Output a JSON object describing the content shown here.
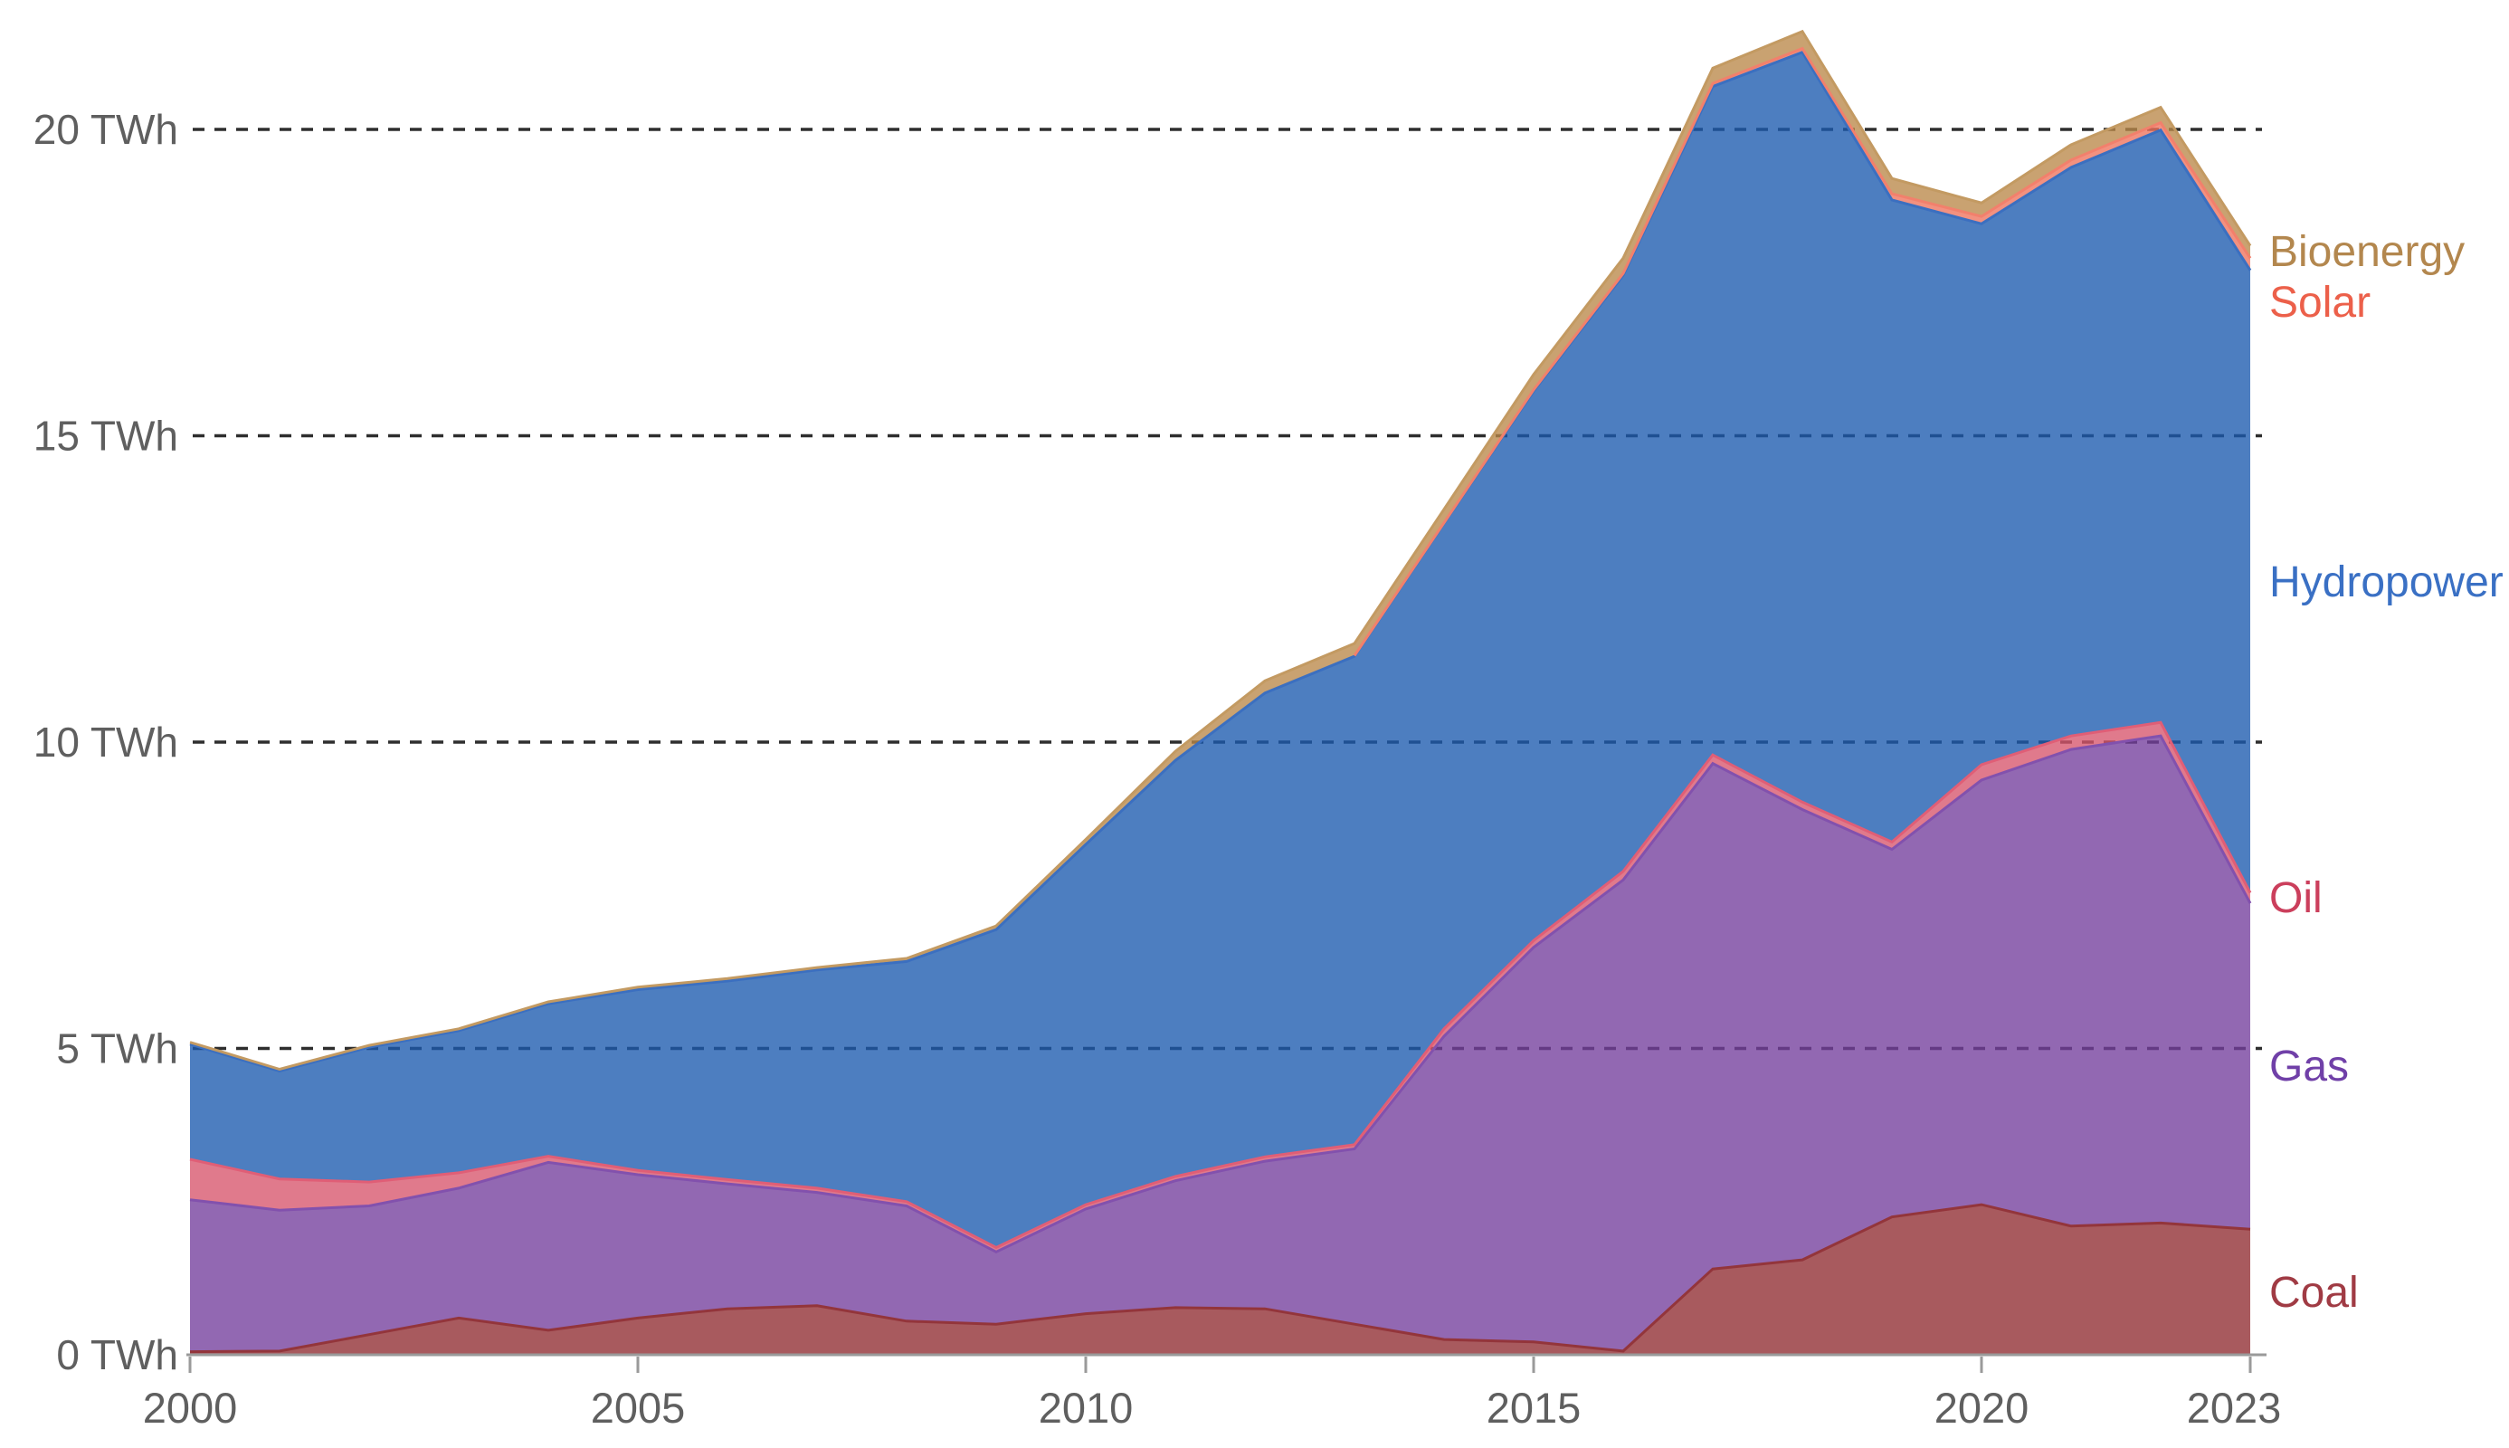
{
  "chart_data": {
    "type": "area",
    "stacked": true,
    "title": "",
    "unit": "TWh",
    "grid": "dashed-horizontal",
    "legend_position": "right-edge-labels",
    "x": [
      2000,
      2001,
      2002,
      2003,
      2004,
      2005,
      2006,
      2007,
      2008,
      2009,
      2010,
      2011,
      2012,
      2013,
      2014,
      2015,
      2016,
      2017,
      2018,
      2019,
      2020,
      2021,
      2022,
      2023
    ],
    "series": [
      {
        "name": "Coal",
        "label": "Coal",
        "fill": "#902c31",
        "stroke": "#93353b",
        "label_color": "#a03b44",
        "values": [
          0.05,
          0.06,
          0.33,
          0.6,
          0.4,
          0.6,
          0.75,
          0.8,
          0.55,
          0.5,
          0.67,
          0.77,
          0.75,
          0.5,
          0.25,
          0.21,
          0.06,
          1.4,
          1.55,
          2.25,
          2.45,
          2.1,
          2.15,
          2.05
        ]
      },
      {
        "name": "Gas",
        "label": "Gas",
        "fill": "#733e9c",
        "stroke": "#8251ad",
        "label_color": "#7040a8",
        "values": [
          2.48,
          2.3,
          2.1,
          2.12,
          2.74,
          2.34,
          2.04,
          1.85,
          1.88,
          1.18,
          1.71,
          2.07,
          2.41,
          2.86,
          4.95,
          6.44,
          7.69,
          8.25,
          7.35,
          6.0,
          6.93,
          7.78,
          7.95,
          5.32
        ]
      },
      {
        "name": "Oil",
        "label": "Oil",
        "fill": "#d7556c",
        "stroke": "#e05e76",
        "label_color": "#cb3f5c",
        "values": [
          0.66,
          0.51,
          0.39,
          0.25,
          0.1,
          0.07,
          0.07,
          0.07,
          0.07,
          0.07,
          0.07,
          0.07,
          0.07,
          0.07,
          0.12,
          0.11,
          0.14,
          0.14,
          0.12,
          0.12,
          0.25,
          0.22,
          0.22,
          0.17
        ]
      },
      {
        "name": "Hydropower",
        "label": "Hydropower",
        "fill": "#1b5aae",
        "stroke": "#3b6fc0",
        "label_color": "#3a70c4",
        "values": [
          1.88,
          1.76,
          2.2,
          2.32,
          2.49,
          2.95,
          3.24,
          3.56,
          3.92,
          5.19,
          5.88,
          6.79,
          7.57,
          7.97,
          8.25,
          8.97,
          9.73,
          10.91,
          12.24,
          10.48,
          8.83,
          9.28,
          9.67,
          10.16
        ]
      },
      {
        "name": "Solar",
        "label": "Solar",
        "fill": "#ee725c",
        "stroke": "#f2806c",
        "label_color": "#ec604a",
        "line_start_year": 2013,
        "values": [
          0,
          0,
          0,
          0,
          0,
          0,
          0,
          0,
          0,
          0,
          0,
          0,
          0,
          0.01,
          0.01,
          0.02,
          0.03,
          0.05,
          0.06,
          0.1,
          0.12,
          0.12,
          0.12,
          0.2
        ]
      },
      {
        "name": "Bioenergy",
        "label": "Bioenergy",
        "fill": "#ba8849",
        "stroke": "#c39a62",
        "label_color": "#b3874e",
        "values": [
          0.03,
          0.03,
          0.03,
          0.03,
          0.03,
          0.04,
          0.04,
          0.04,
          0.05,
          0.06,
          0.08,
          0.15,
          0.2,
          0.2,
          0.22,
          0.25,
          0.25,
          0.25,
          0.28,
          0.25,
          0.22,
          0.25,
          0.25,
          0.2
        ]
      }
    ],
    "y_axis": {
      "range": [
        0,
        22
      ],
      "ticks": [
        {
          "value": 0,
          "label": "0 TWh"
        },
        {
          "value": 5,
          "label": "5 TWh"
        },
        {
          "value": 10,
          "label": "10 TWh"
        },
        {
          "value": 15,
          "label": "15 TWh"
        },
        {
          "value": 20,
          "label": "20 TWh"
        }
      ]
    },
    "x_axis": {
      "ticks": [
        {
          "value": 2000,
          "label": "2000"
        },
        {
          "value": 2005,
          "label": "2005"
        },
        {
          "value": 2010,
          "label": "2010"
        },
        {
          "value": 2015,
          "label": "2015"
        },
        {
          "value": 2020,
          "label": "2020"
        },
        {
          "value": 2023,
          "label": "2023"
        }
      ]
    },
    "gridline_color": "#2e2e2e",
    "axis_line_color": "#9a9a9a",
    "axis_text_color": "#5f5f5f",
    "fill_opacity": 0.78
  }
}
